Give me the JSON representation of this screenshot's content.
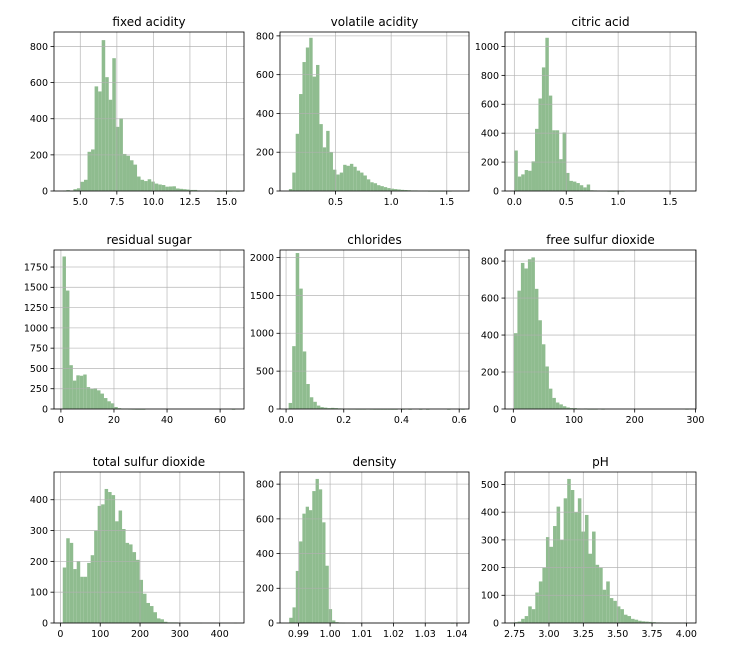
{
  "figure": {
    "layout": "3x3 grid of histograms",
    "bar_color": "#8fbc8f",
    "grid": true
  },
  "chart_data": [
    {
      "type": "bar",
      "title": "fixed acidity",
      "xlim": [
        3.2,
        16.2
      ],
      "ylim": [
        0,
        880
      ],
      "xticks": [
        5,
        7.5,
        10,
        12.5,
        15
      ],
      "xtick_labels": [
        "5.0",
        "7.5",
        "10.0",
        "12.5",
        "15.0"
      ],
      "yticks": [
        0,
        200,
        400,
        600,
        800
      ],
      "ytick_labels": [
        "0",
        "200",
        "400",
        "600",
        "800"
      ],
      "bin_start": 3.8,
      "bin_width": 0.242,
      "values": [
        2,
        5,
        2,
        10,
        15,
        51,
        62,
        217,
        230,
        579,
        551,
        835,
        630,
        505,
        735,
        355,
        402,
        205,
        195,
        170,
        146,
        80,
        62,
        55,
        65,
        52,
        41,
        36,
        33,
        24,
        25,
        26,
        14,
        12,
        10,
        8,
        6,
        6,
        3,
        2,
        3,
        2,
        2,
        1,
        1,
        2,
        1,
        1,
        2,
        1,
        0
      ]
    },
    {
      "type": "bar",
      "title": "volatile acidity",
      "xlim": [
        0.0,
        1.7
      ],
      "ylim": [
        0,
        820
      ],
      "xticks": [
        0.5,
        1.0,
        1.5
      ],
      "xtick_labels": [
        "0.5",
        "1.0",
        "1.5"
      ],
      "yticks": [
        0,
        200,
        400,
        600,
        800
      ],
      "ytick_labels": [
        "0",
        "200",
        "400",
        "600",
        "800"
      ],
      "bin_start": 0.08,
      "bin_width": 0.0305,
      "values": [
        10,
        95,
        295,
        500,
        665,
        740,
        790,
        590,
        650,
        345,
        225,
        310,
        200,
        110,
        85,
        95,
        135,
        130,
        140,
        125,
        105,
        95,
        80,
        60,
        45,
        40,
        30,
        25,
        20,
        15,
        12,
        10,
        8,
        6,
        5,
        4,
        3,
        3,
        2,
        2,
        2,
        1,
        1,
        1,
        1,
        1,
        0,
        1,
        0,
        0
      ]
    },
    {
      "type": "bar",
      "title": "citric acid",
      "xlim": [
        -0.09,
        1.75
      ],
      "ylim": [
        0,
        1100
      ],
      "xticks": [
        0,
        0.5,
        1.0,
        1.5
      ],
      "xtick_labels": [
        "0.0",
        "0.5",
        "1.0",
        "1.5"
      ],
      "yticks": [
        0,
        200,
        400,
        600,
        800,
        1000
      ],
      "ytick_labels": [
        "0",
        "200",
        "400",
        "600",
        "800",
        "1000"
      ],
      "bin_start": 0.0,
      "bin_width": 0.0332,
      "values": [
        280,
        100,
        115,
        145,
        140,
        205,
        430,
        640,
        855,
        1060,
        660,
        420,
        420,
        220,
        405,
        125,
        70,
        65,
        55,
        40,
        25,
        45,
        5,
        4,
        3,
        2,
        2,
        1,
        1,
        1,
        1,
        1,
        0,
        0,
        0,
        0,
        0,
        0,
        0,
        0,
        0,
        0,
        0,
        0,
        0,
        0,
        0,
        0,
        0,
        0
      ]
    },
    {
      "type": "bar",
      "title": "residual sugar",
      "xlim": [
        -2.6,
        69.0
      ],
      "ylim": [
        0,
        1960
      ],
      "xticks": [
        0,
        20,
        40,
        60
      ],
      "xtick_labels": [
        "0",
        "20",
        "40",
        "60"
      ],
      "yticks": [
        0,
        250,
        500,
        750,
        1000,
        1250,
        1500,
        1750
      ],
      "ytick_labels": [
        "0",
        "250",
        "500",
        "750",
        "1000",
        "1250",
        "1500",
        "1750"
      ],
      "bin_start": 0.6,
      "bin_width": 1.302,
      "values": [
        1880,
        1460,
        540,
        350,
        415,
        410,
        425,
        270,
        250,
        255,
        230,
        190,
        135,
        95,
        70,
        25,
        10,
        5,
        5,
        3,
        2,
        1,
        1,
        1,
        0,
        0,
        0,
        0,
        0,
        0,
        0,
        0,
        0,
        0,
        0,
        0,
        0,
        0,
        0,
        0,
        0,
        0,
        0,
        0,
        0,
        0,
        0,
        0,
        0,
        1
      ]
    },
    {
      "type": "bar",
      "title": "chlorides",
      "xlim": [
        -0.021,
        0.634
      ],
      "ylim": [
        0,
        2100
      ],
      "xticks": [
        0,
        0.2,
        0.4,
        0.6
      ],
      "xtick_labels": [
        "0.0",
        "0.2",
        "0.4",
        "0.6"
      ],
      "yticks": [
        0,
        500,
        1000,
        1500,
        2000
      ],
      "ytick_labels": [
        "0",
        "500",
        "1000",
        "1500",
        "2000"
      ],
      "bin_start": 0.009,
      "bin_width": 0.0122,
      "values": [
        80,
        830,
        2060,
        1590,
        760,
        330,
        155,
        95,
        45,
        25,
        18,
        12,
        15,
        12,
        8,
        6,
        4,
        3,
        3,
        2,
        2,
        2,
        3,
        2,
        1,
        1,
        1,
        1,
        1,
        1,
        1,
        0,
        1,
        0,
        1,
        0,
        0,
        1,
        0,
        1,
        0,
        0,
        0,
        0,
        0,
        1,
        0,
        0,
        0,
        1
      ]
    },
    {
      "type": "bar",
      "title": "free sulfur dioxide",
      "xlim": [
        -13.7,
        301.0
      ],
      "ylim": [
        0,
        860
      ],
      "xticks": [
        0,
        100,
        200,
        300
      ],
      "xtick_labels": [
        "0",
        "100",
        "200",
        "300"
      ],
      "yticks": [
        0,
        200,
        400,
        600,
        800
      ],
      "ytick_labels": [
        "0",
        "200",
        "400",
        "600",
        "800"
      ],
      "bin_start": 1.0,
      "bin_width": 5.76,
      "values": [
        410,
        640,
        790,
        760,
        810,
        820,
        650,
        480,
        350,
        230,
        110,
        60,
        35,
        25,
        15,
        8,
        5,
        5,
        3,
        2,
        3,
        1,
        1,
        1,
        0,
        1,
        0,
        0,
        0,
        0,
        0,
        0,
        0,
        0,
        0,
        0,
        0,
        0,
        0,
        0,
        0,
        0,
        0,
        0,
        0,
        0,
        0,
        0,
        0,
        1
      ]
    },
    {
      "type": "bar",
      "title": "total sulfur dioxide",
      "xlim": [
        -16.0,
        461.0
      ],
      "ylim": [
        0,
        490
      ],
      "xticks": [
        0,
        100,
        200,
        300,
        400
      ],
      "xtick_labels": [
        "0",
        "100",
        "200",
        "300",
        "400"
      ],
      "yticks": [
        0,
        100,
        200,
        300,
        400
      ],
      "ytick_labels": [
        "0",
        "100",
        "200",
        "300",
        "400"
      ],
      "bin_start": 6.0,
      "bin_width": 8.76,
      "values": [
        180,
        275,
        260,
        175,
        200,
        150,
        150,
        195,
        220,
        300,
        380,
        385,
        435,
        425,
        415,
        330,
        365,
        305,
        260,
        255,
        230,
        205,
        140,
        95,
        65,
        55,
        35,
        15,
        12,
        4,
        2,
        2,
        2,
        1,
        1,
        1,
        1,
        1,
        1,
        1,
        0,
        0,
        0,
        0,
        0,
        0,
        0,
        0,
        0,
        1
      ]
    },
    {
      "type": "bar",
      "title": "density",
      "xlim": [
        0.9842,
        1.0438
      ],
      "ylim": [
        0,
        870
      ],
      "xticks": [
        0.99,
        1.0,
        1.01,
        1.02,
        1.03,
        1.04
      ],
      "xtick_labels": [
        "0.99",
        "1.00",
        "1.01",
        "1.02",
        "1.03",
        "1.04"
      ],
      "yticks": [
        0,
        200,
        400,
        600,
        800
      ],
      "ytick_labels": [
        "0",
        "200",
        "400",
        "600",
        "800"
      ],
      "bin_start": 0.9871,
      "bin_width": 0.00104,
      "values": [
        30,
        90,
        300,
        470,
        630,
        670,
        650,
        760,
        830,
        770,
        580,
        330,
        80,
        15,
        5,
        3,
        2,
        0,
        0,
        0,
        0,
        0,
        0,
        0,
        0,
        0,
        0,
        0,
        0,
        0,
        0,
        0,
        0,
        0,
        0,
        0,
        0,
        0,
        0,
        0,
        0,
        0,
        0,
        0,
        0,
        0,
        0,
        0,
        0,
        1
      ]
    },
    {
      "type": "bar",
      "title": "pH",
      "xlim": [
        2.68,
        4.07
      ],
      "ylim": [
        0,
        545
      ],
      "xticks": [
        2.75,
        3.0,
        3.25,
        3.5,
        3.75,
        4.0
      ],
      "xtick_labels": [
        "2.75",
        "3.00",
        "3.25",
        "3.50",
        "3.75",
        "4.00"
      ],
      "yticks": [
        0,
        100,
        200,
        300,
        400,
        500
      ],
      "ytick_labels": [
        "0",
        "100",
        "200",
        "300",
        "400",
        "500"
      ],
      "bin_start": 2.72,
      "bin_width": 0.0258,
      "values": [
        2,
        3,
        5,
        15,
        25,
        60,
        50,
        110,
        150,
        200,
        310,
        275,
        350,
        420,
        300,
        450,
        520,
        480,
        400,
        450,
        330,
        390,
        250,
        330,
        210,
        200,
        120,
        150,
        90,
        80,
        60,
        50,
        30,
        25,
        15,
        12,
        8,
        6,
        5,
        4,
        3,
        2,
        2,
        1,
        1,
        1,
        1,
        1,
        0,
        1
      ]
    }
  ]
}
